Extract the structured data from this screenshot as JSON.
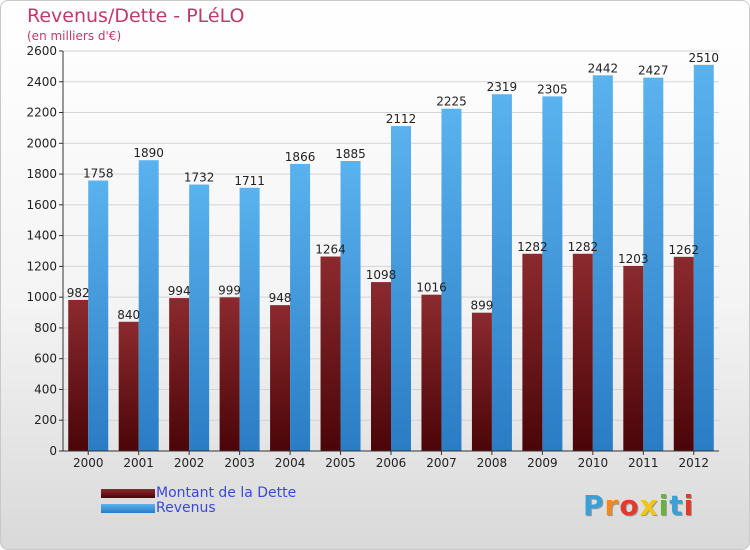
{
  "title": "Revenus/Dette - PLéLO",
  "subtitle": "(en milliers d'€)",
  "colors": {
    "debt": "#7a1e22",
    "revenue": "#4aa3e6",
    "title": "#c0396b",
    "legend_text": "#3a49d8"
  },
  "logo": {
    "text": "Proxiti",
    "colors": [
      "#3aa0d8",
      "#f08a1e",
      "#e23a2a",
      "#f0c61e",
      "#6ab23a",
      "#3aa0d8",
      "#e23a2a"
    ]
  },
  "chart_data": {
    "type": "bar",
    "categories": [
      "2000",
      "2001",
      "2002",
      "2003",
      "2004",
      "2005",
      "2006",
      "2007",
      "2008",
      "2009",
      "2010",
      "2011",
      "2012"
    ],
    "series": [
      {
        "name": "Montant de la Dette",
        "values": [
          982,
          840,
          994,
          999,
          948,
          1264,
          1098,
          1016,
          899,
          1282,
          1282,
          1203,
          1262
        ],
        "labels": [
          "982",
          "840",
          "994",
          "999",
          "948",
          "1264",
          "1098",
          "1016",
          "899",
          "1282",
          "1282",
          "1203",
          "1262"
        ]
      },
      {
        "name": "Revenus",
        "values": [
          1758,
          1890,
          1732,
          1711,
          1866,
          1885,
          2112,
          2225,
          2319,
          2305,
          2442,
          2427,
          2510
        ],
        "labels": [
          "1758",
          "1890",
          "1732",
          "1711",
          "1866",
          "1885",
          "2112",
          "2225",
          "2319",
          "2305",
          "2442",
          "2427",
          "2510"
        ]
      }
    ],
    "ylim": [
      0,
      2600
    ],
    "yticks": [
      0,
      200,
      400,
      600,
      800,
      1000,
      1200,
      1400,
      1600,
      1800,
      2000,
      2200,
      2400,
      2600
    ],
    "grid": true,
    "legend_position": "bottom-left"
  }
}
